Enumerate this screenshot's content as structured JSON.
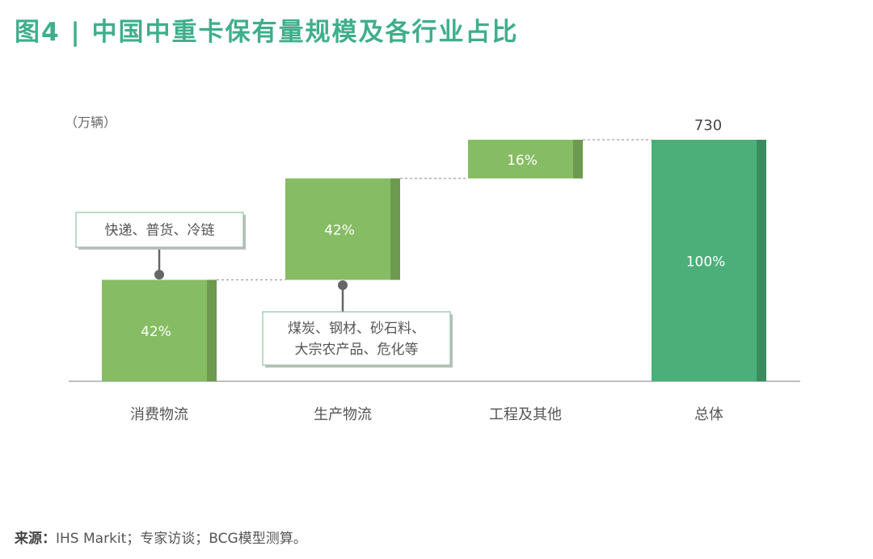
{
  "header": {
    "title": "图4 | 中国中重卡保有量规模及各行业占比"
  },
  "source": {
    "label": "来源：",
    "text": "IHS Markit；专家访谈；BCG模型测算。"
  },
  "chart_data": {
    "type": "bar",
    "subtype": "waterfall",
    "unit": "（万辆）",
    "categories": [
      "消费物流",
      "生产物流",
      "工程及其他",
      "总体"
    ],
    "values": [
      306.6,
      306.6,
      116.8,
      730
    ],
    "value_labels": [
      "42%",
      "42%",
      "16%",
      "100%"
    ],
    "total_label": "730",
    "total": 730,
    "ylim": [
      0,
      730
    ],
    "annotations": [
      {
        "category": "消费物流",
        "lines": [
          "快递、普货、冷链"
        ]
      },
      {
        "category": "生产物流",
        "lines": [
          "煤炭、钢材、砂石料、",
          "大宗农产品、危化等"
        ]
      }
    ],
    "colors": {
      "segment": "#86bc63",
      "segment_edge": "#6e9a50",
      "total": "#4caf79",
      "total_edge": "#3a8c5f",
      "title": "#3fae8a",
      "axis": "#aaaaaa",
      "connector": "#888888"
    }
  }
}
